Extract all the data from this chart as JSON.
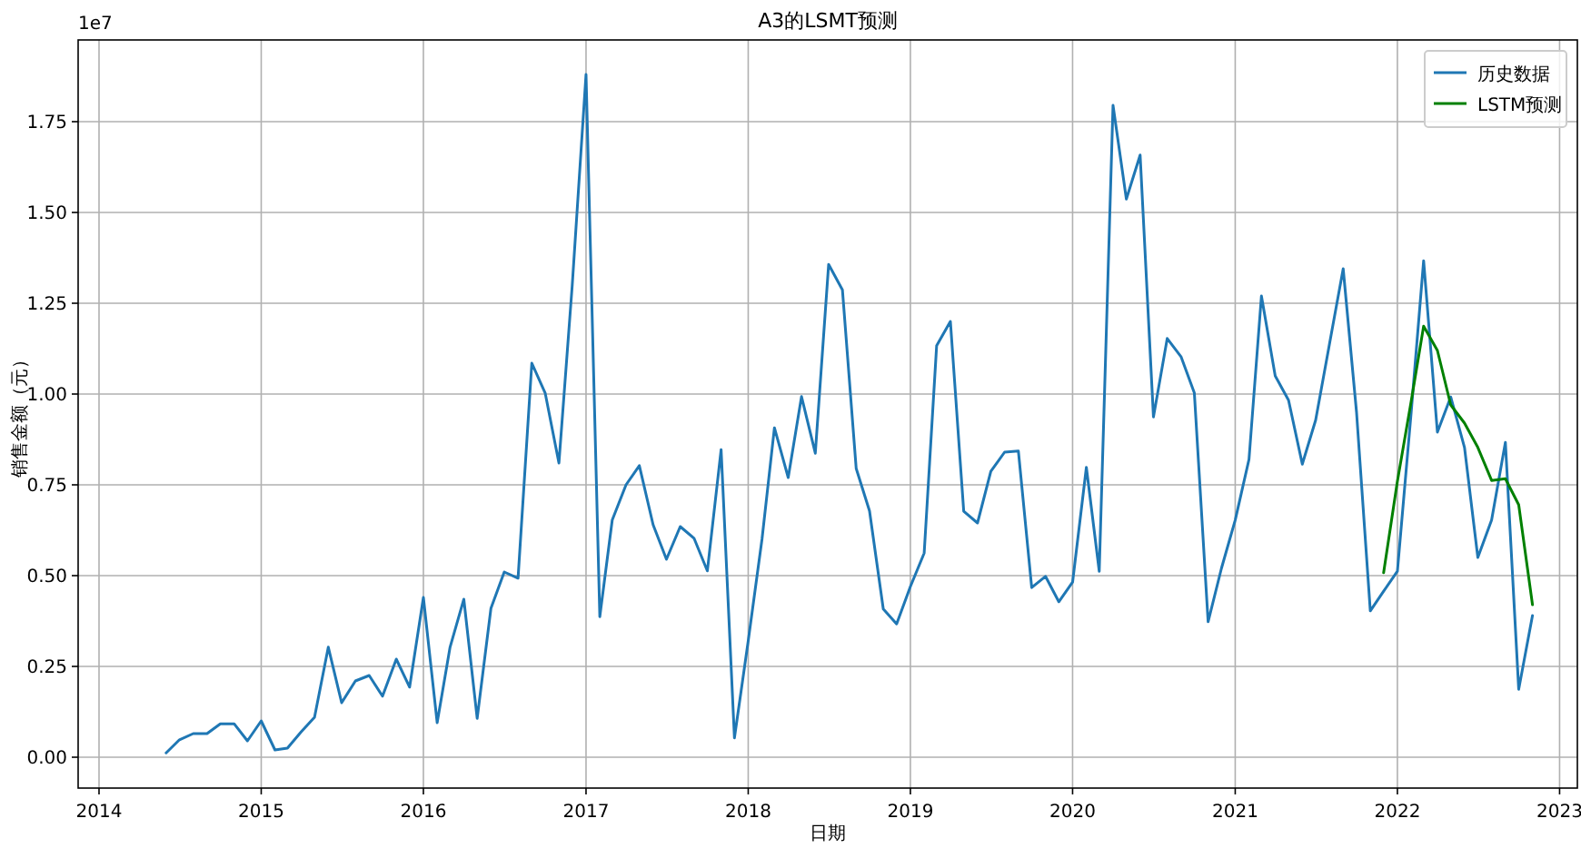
{
  "chart_data": {
    "type": "line",
    "title": "A3的LSMT预测",
    "xlabel": "日期",
    "ylabel": "销售金额（元）",
    "annotations": [
      "1e7"
    ],
    "xlim": [
      "2013-11-15",
      "2023-02-10"
    ],
    "xticks": [
      {
        "value": "2014-01-01",
        "label": "2014"
      },
      {
        "value": "2015-01-01",
        "label": "2015"
      },
      {
        "value": "2016-01-01",
        "label": "2016"
      },
      {
        "value": "2017-01-01",
        "label": "2017"
      },
      {
        "value": "2018-01-01",
        "label": "2018"
      },
      {
        "value": "2019-01-01",
        "label": "2019"
      },
      {
        "value": "2020-01-01",
        "label": "2020"
      },
      {
        "value": "2021-01-01",
        "label": "2021"
      },
      {
        "value": "2022-01-01",
        "label": "2022"
      },
      {
        "value": "2023-01-01",
        "label": "2023"
      }
    ],
    "ylim": [
      -0.085,
      1.975
    ],
    "yticks": [
      {
        "value": 0,
        "label": "0.00"
      },
      {
        "value": 0.25,
        "label": "0.25"
      },
      {
        "value": 0.5,
        "label": "0.50"
      },
      {
        "value": 0.75,
        "label": "0.75"
      },
      {
        "value": 1.0,
        "label": "1.00"
      },
      {
        "value": 1.25,
        "label": "1.25"
      },
      {
        "value": 1.5,
        "label": "1.50"
      },
      {
        "value": 1.75,
        "label": "1.75"
      }
    ],
    "grid": true,
    "legend": "top right",
    "series": [
      {
        "name": "历史数据",
        "color": "#1f77b4",
        "x": [
          "2014-06",
          "2014-07",
          "2014-08",
          "2014-09",
          "2014-10",
          "2014-11",
          "2014-12",
          "2015-01",
          "2015-02",
          "2015-03",
          "2015-04",
          "2015-05",
          "2015-06",
          "2015-07",
          "2015-08",
          "2015-09",
          "2015-10",
          "2015-11",
          "2015-12",
          "2016-01",
          "2016-02",
          "2016-03",
          "2016-04",
          "2016-05",
          "2016-06",
          "2016-07",
          "2016-08",
          "2016-09",
          "2016-10",
          "2016-11",
          "2016-12",
          "2017-01",
          "2017-02",
          "2017-03",
          "2017-04",
          "2017-05",
          "2017-06",
          "2017-07",
          "2017-08",
          "2017-09",
          "2017-10",
          "2017-11",
          "2017-12",
          "2018-01",
          "2018-02",
          "2018-03",
          "2018-04",
          "2018-05",
          "2018-06",
          "2018-07",
          "2018-08",
          "2018-09",
          "2018-10",
          "2018-11",
          "2018-12",
          "2019-01",
          "2019-02",
          "2019-03",
          "2019-04",
          "2019-05",
          "2019-06",
          "2019-07",
          "2019-08",
          "2019-09",
          "2019-10",
          "2019-11",
          "2019-12",
          "2020-01",
          "2020-02",
          "2020-03",
          "2020-04",
          "2020-05",
          "2020-06",
          "2020-07",
          "2020-08",
          "2020-09",
          "2020-10",
          "2020-11",
          "2020-12",
          "2021-01",
          "2021-02",
          "2021-03",
          "2021-04",
          "2021-05",
          "2021-06",
          "2021-07",
          "2021-08",
          "2021-09",
          "2021-10",
          "2021-11",
          "2021-12",
          "2022-01",
          "2022-02",
          "2022-03",
          "2022-04",
          "2022-05",
          "2022-06",
          "2022-07",
          "2022-08",
          "2022-09",
          "2022-10",
          "2022-11"
        ],
        "values": [
          0.012,
          0.048,
          0.065,
          0.065,
          0.092,
          0.092,
          0.045,
          0.1,
          0.02,
          0.025,
          0.07,
          0.11,
          0.303,
          0.15,
          0.21,
          0.225,
          0.168,
          0.27,
          0.193,
          0.44,
          0.095,
          0.303,
          0.435,
          0.107,
          0.41,
          0.51,
          0.493,
          1.085,
          1.003,
          0.81,
          1.3,
          1.88,
          0.387,
          0.653,
          0.75,
          0.803,
          0.64,
          0.545,
          0.635,
          0.603,
          0.513,
          0.847,
          0.053,
          0.32,
          0.6,
          0.907,
          0.77,
          0.993,
          0.837,
          1.357,
          1.287,
          0.795,
          0.678,
          0.408,
          0.367,
          0.47,
          0.562,
          1.133,
          1.2,
          0.677,
          0.645,
          0.787,
          0.84,
          0.843,
          0.467,
          0.498,
          0.428,
          0.482,
          0.798,
          0.512,
          1.795,
          1.537,
          1.658,
          0.937,
          1.153,
          1.103,
          1.003,
          0.373,
          0.52,
          0.653,
          0.82,
          1.27,
          1.05,
          0.983,
          0.807,
          0.928,
          1.137,
          1.345,
          0.95,
          0.403,
          0.457,
          0.512,
          0.95,
          1.367,
          0.895,
          0.992,
          0.853,
          0.55,
          0.653,
          0.867,
          0.187,
          0.39
        ]
      },
      {
        "name": "LSTM预测",
        "color": "#008000",
        "x": [
          "2021-12",
          "2022-01",
          "2022-02",
          "2022-03",
          "2022-04",
          "2022-05",
          "2022-06",
          "2022-07",
          "2022-08",
          "2022-09",
          "2022-10",
          "2022-11"
        ],
        "values": [
          0.508,
          0.76,
          0.98,
          1.187,
          1.12,
          0.97,
          0.92,
          0.853,
          0.762,
          0.767,
          0.695,
          0.42
        ]
      }
    ]
  }
}
